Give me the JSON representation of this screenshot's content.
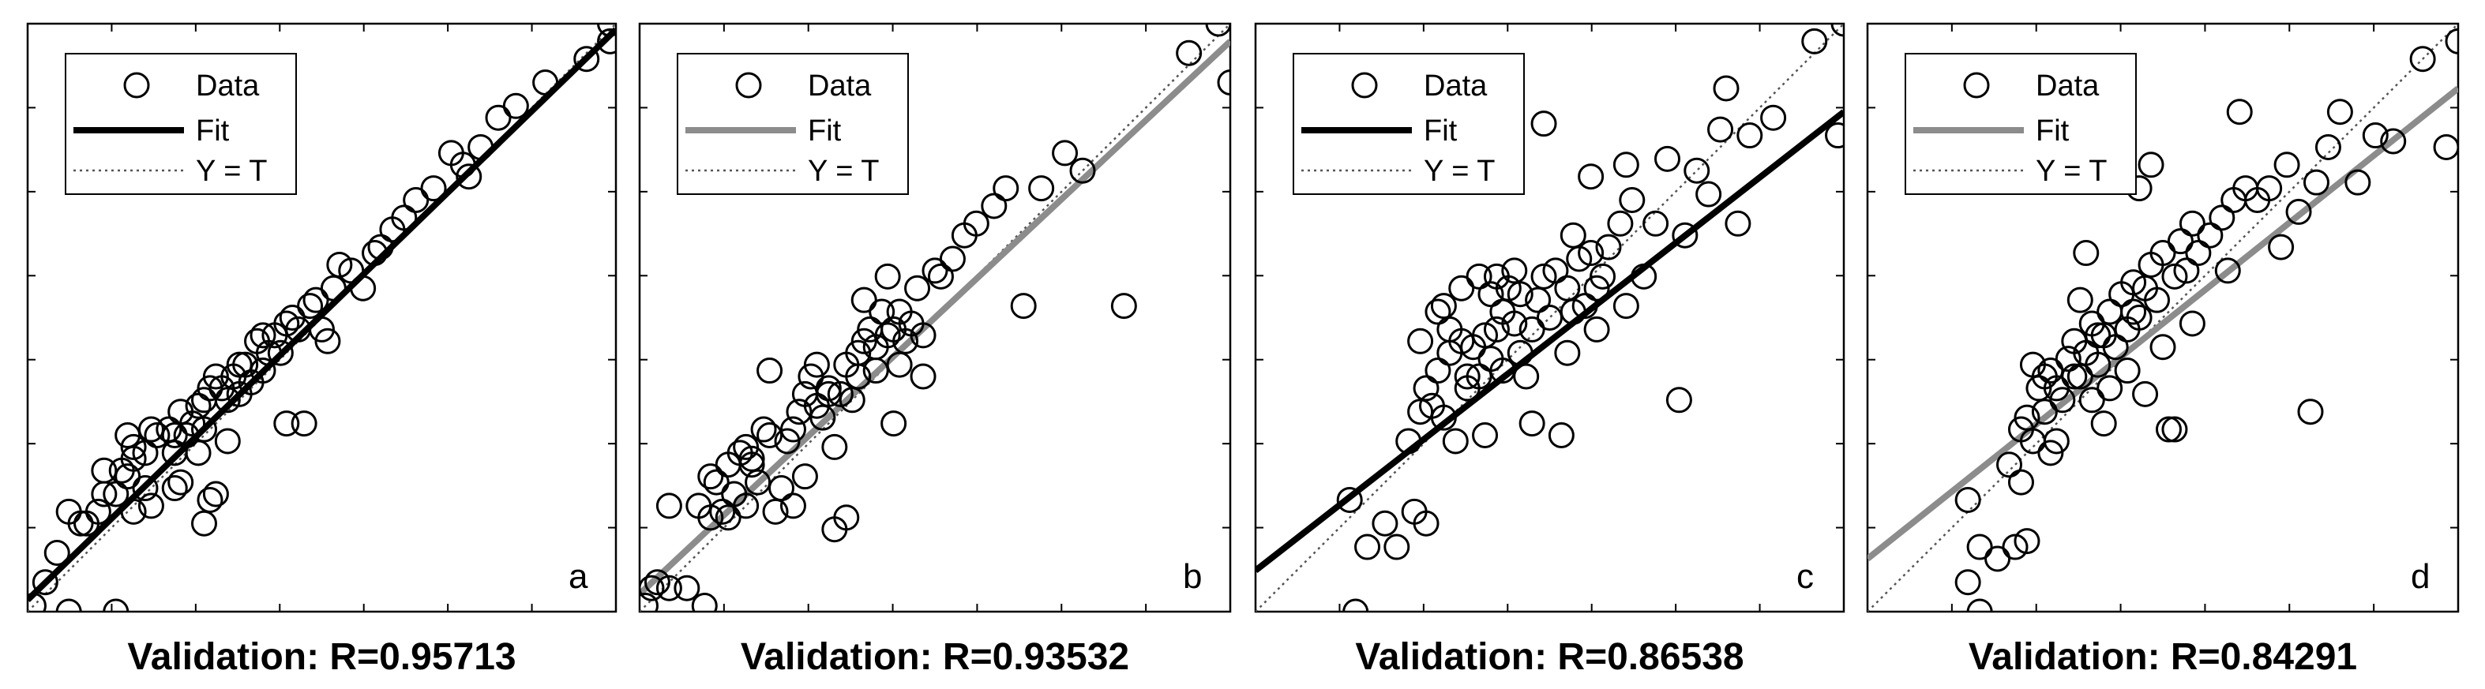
{
  "chart_data": [
    {
      "type": "scatter",
      "panel_label": "a",
      "caption": "Validation: R=0.95713",
      "fit_color": "#000000",
      "legend": {
        "data": "Data",
        "fit": "Fit",
        "identity": "Y = T"
      },
      "xlim": [
        0,
        1
      ],
      "ylim": [
        0,
        1
      ],
      "fit": {
        "slope": 0.97,
        "intercept": 0.02
      },
      "points": [
        [
          0.01,
          0.01
        ],
        [
          0.03,
          0.05
        ],
        [
          0.05,
          0.1
        ],
        [
          0.07,
          0.0
        ],
        [
          0.15,
          0.0
        ],
        [
          0.07,
          0.17
        ],
        [
          0.09,
          0.15
        ],
        [
          0.1,
          0.15
        ],
        [
          0.12,
          0.17
        ],
        [
          0.13,
          0.2
        ],
        [
          0.13,
          0.24
        ],
        [
          0.15,
          0.2
        ],
        [
          0.16,
          0.24
        ],
        [
          0.17,
          0.23
        ],
        [
          0.18,
          0.26
        ],
        [
          0.18,
          0.17
        ],
        [
          0.2,
          0.27
        ],
        [
          0.21,
          0.31
        ],
        [
          0.22,
          0.3
        ],
        [
          0.24,
          0.31
        ],
        [
          0.25,
          0.27
        ],
        [
          0.25,
          0.3
        ],
        [
          0.26,
          0.34
        ],
        [
          0.27,
          0.3
        ],
        [
          0.28,
          0.32
        ],
        [
          0.29,
          0.35
        ],
        [
          0.3,
          0.36
        ],
        [
          0.3,
          0.31
        ],
        [
          0.31,
          0.38
        ],
        [
          0.32,
          0.4
        ],
        [
          0.33,
          0.38
        ],
        [
          0.34,
          0.36
        ],
        [
          0.35,
          0.4
        ],
        [
          0.36,
          0.37
        ],
        [
          0.37,
          0.42
        ],
        [
          0.38,
          0.39
        ],
        [
          0.39,
          0.46
        ],
        [
          0.4,
          0.47
        ],
        [
          0.41,
          0.44
        ],
        [
          0.42,
          0.47
        ],
        [
          0.43,
          0.44
        ],
        [
          0.44,
          0.49
        ],
        [
          0.45,
          0.5
        ],
        [
          0.46,
          0.48
        ],
        [
          0.47,
          0.32
        ],
        [
          0.48,
          0.52
        ],
        [
          0.49,
          0.53
        ],
        [
          0.5,
          0.48
        ],
        [
          0.51,
          0.46
        ],
        [
          0.52,
          0.55
        ],
        [
          0.53,
          0.59
        ],
        [
          0.55,
          0.58
        ],
        [
          0.57,
          0.55
        ],
        [
          0.59,
          0.61
        ],
        [
          0.6,
          0.62
        ],
        [
          0.62,
          0.65
        ],
        [
          0.64,
          0.67
        ],
        [
          0.66,
          0.7
        ],
        [
          0.69,
          0.72
        ],
        [
          0.72,
          0.78
        ],
        [
          0.74,
          0.76
        ],
        [
          0.75,
          0.74
        ],
        [
          0.77,
          0.79
        ],
        [
          0.8,
          0.84
        ],
        [
          0.83,
          0.86
        ],
        [
          0.88,
          0.9
        ],
        [
          0.95,
          0.94
        ],
        [
          0.99,
          0.97
        ],
        [
          0.99,
          1.0
        ],
        [
          0.44,
          0.32
        ],
        [
          0.25,
          0.21
        ],
        [
          0.17,
          0.3
        ],
        [
          0.31,
          0.19
        ],
        [
          0.32,
          0.2
        ],
        [
          0.34,
          0.29
        ],
        [
          0.26,
          0.22
        ],
        [
          0.4,
          0.41
        ],
        [
          0.36,
          0.42
        ],
        [
          0.29,
          0.27
        ],
        [
          0.21,
          0.18
        ],
        [
          0.2,
          0.21
        ],
        [
          0.18,
          0.28
        ],
        [
          0.3,
          0.15
        ]
      ]
    },
    {
      "type": "scatter",
      "panel_label": "b",
      "caption": "Validation: R=0.93532",
      "fit_color": "#8c8c8c",
      "legend": {
        "data": "Data",
        "fit": "Fit",
        "identity": "Y = T"
      },
      "xlim": [
        0,
        1
      ],
      "ylim": [
        0,
        1
      ],
      "fit": {
        "slope": 0.94,
        "intercept": 0.03
      },
      "points": [
        [
          0.01,
          0.01
        ],
        [
          0.02,
          0.04
        ],
        [
          0.03,
          0.05
        ],
        [
          0.05,
          0.04
        ],
        [
          0.08,
          0.04
        ],
        [
          0.11,
          0.01
        ],
        [
          0.1,
          0.18
        ],
        [
          0.12,
          0.16
        ],
        [
          0.13,
          0.22
        ],
        [
          0.14,
          0.17
        ],
        [
          0.15,
          0.16
        ],
        [
          0.16,
          0.2
        ],
        [
          0.18,
          0.18
        ],
        [
          0.18,
          0.28
        ],
        [
          0.19,
          0.25
        ],
        [
          0.2,
          0.22
        ],
        [
          0.21,
          0.31
        ],
        [
          0.22,
          0.3
        ],
        [
          0.23,
          0.17
        ],
        [
          0.24,
          0.21
        ],
        [
          0.25,
          0.29
        ],
        [
          0.26,
          0.31
        ],
        [
          0.27,
          0.34
        ],
        [
          0.28,
          0.37
        ],
        [
          0.29,
          0.4
        ],
        [
          0.3,
          0.35
        ],
        [
          0.31,
          0.33
        ],
        [
          0.32,
          0.38
        ],
        [
          0.33,
          0.14
        ],
        [
          0.34,
          0.37
        ],
        [
          0.35,
          0.42
        ],
        [
          0.36,
          0.36
        ],
        [
          0.37,
          0.44
        ],
        [
          0.38,
          0.46
        ],
        [
          0.39,
          0.48
        ],
        [
          0.4,
          0.45
        ],
        [
          0.41,
          0.51
        ],
        [
          0.42,
          0.47
        ],
        [
          0.43,
          0.32
        ],
        [
          0.44,
          0.51
        ],
        [
          0.45,
          0.46
        ],
        [
          0.46,
          0.49
        ],
        [
          0.47,
          0.55
        ],
        [
          0.48,
          0.4
        ],
        [
          0.5,
          0.58
        ],
        [
          0.51,
          0.57
        ],
        [
          0.53,
          0.6
        ],
        [
          0.55,
          0.64
        ],
        [
          0.57,
          0.66
        ],
        [
          0.6,
          0.69
        ],
        [
          0.62,
          0.72
        ],
        [
          0.65,
          0.52
        ],
        [
          0.68,
          0.72
        ],
        [
          0.72,
          0.78
        ],
        [
          0.75,
          0.75
        ],
        [
          0.82,
          0.52
        ],
        [
          0.93,
          0.95
        ],
        [
          0.98,
          1.0
        ],
        [
          1.0,
          0.9
        ],
        [
          0.38,
          0.53
        ],
        [
          0.28,
          0.23
        ],
        [
          0.35,
          0.16
        ],
        [
          0.4,
          0.41
        ],
        [
          0.19,
          0.26
        ],
        [
          0.22,
          0.41
        ],
        [
          0.3,
          0.42
        ],
        [
          0.15,
          0.25
        ],
        [
          0.12,
          0.23
        ],
        [
          0.17,
          0.27
        ],
        [
          0.26,
          0.18
        ],
        [
          0.32,
          0.37
        ],
        [
          0.37,
          0.4
        ],
        [
          0.43,
          0.48
        ],
        [
          0.48,
          0.47
        ],
        [
          0.44,
          0.42
        ],
        [
          0.33,
          0.28
        ],
        [
          0.05,
          0.18
        ],
        [
          0.42,
          0.57
        ]
      ]
    },
    {
      "type": "scatter",
      "panel_label": "c",
      "caption": "Validation: R=0.86538",
      "fit_color": "#000000",
      "legend": {
        "data": "Data",
        "fit": "Fit",
        "identity": "Y = T"
      },
      "xlim": [
        0,
        1
      ],
      "ylim": [
        0,
        1
      ],
      "fit": {
        "slope": 0.78,
        "intercept": 0.07
      },
      "points": [
        [
          0.17,
          0.0
        ],
        [
          0.16,
          0.19
        ],
        [
          0.19,
          0.11
        ],
        [
          0.22,
          0.15
        ],
        [
          0.24,
          0.11
        ],
        [
          0.27,
          0.17
        ],
        [
          0.29,
          0.15
        ],
        [
          0.26,
          0.29
        ],
        [
          0.28,
          0.34
        ],
        [
          0.29,
          0.38
        ],
        [
          0.3,
          0.35
        ],
        [
          0.31,
          0.41
        ],
        [
          0.32,
          0.33
        ],
        [
          0.33,
          0.44
        ],
        [
          0.34,
          0.29
        ],
        [
          0.35,
          0.46
        ],
        [
          0.36,
          0.38
        ],
        [
          0.37,
          0.45
        ],
        [
          0.38,
          0.4
        ],
        [
          0.39,
          0.47
        ],
        [
          0.4,
          0.43
        ],
        [
          0.41,
          0.48
        ],
        [
          0.42,
          0.51
        ],
        [
          0.43,
          0.55
        ],
        [
          0.44,
          0.49
        ],
        [
          0.45,
          0.54
        ],
        [
          0.46,
          0.4
        ],
        [
          0.47,
          0.48
        ],
        [
          0.48,
          0.53
        ],
        [
          0.49,
          0.57
        ],
        [
          0.5,
          0.5
        ],
        [
          0.51,
          0.58
        ],
        [
          0.52,
          0.3
        ],
        [
          0.53,
          0.55
        ],
        [
          0.54,
          0.51
        ],
        [
          0.55,
          0.6
        ],
        [
          0.56,
          0.52
        ],
        [
          0.57,
          0.61
        ],
        [
          0.58,
          0.55
        ],
        [
          0.59,
          0.57
        ],
        [
          0.6,
          0.62
        ],
        [
          0.62,
          0.66
        ],
        [
          0.63,
          0.52
        ],
        [
          0.64,
          0.7
        ],
        [
          0.66,
          0.57
        ],
        [
          0.68,
          0.66
        ],
        [
          0.7,
          0.77
        ],
        [
          0.72,
          0.36
        ],
        [
          0.73,
          0.64
        ],
        [
          0.75,
          0.75
        ],
        [
          0.77,
          0.71
        ],
        [
          0.79,
          0.82
        ],
        [
          0.8,
          0.89
        ],
        [
          0.82,
          0.66
        ],
        [
          0.84,
          0.81
        ],
        [
          0.88,
          0.84
        ],
        [
          0.95,
          0.97
        ],
        [
          0.99,
          0.81
        ],
        [
          1.0,
          1.0
        ],
        [
          0.49,
          0.83
        ],
        [
          0.63,
          0.76
        ],
        [
          0.57,
          0.74
        ],
        [
          0.42,
          0.41
        ],
        [
          0.38,
          0.57
        ],
        [
          0.31,
          0.51
        ],
        [
          0.35,
          0.55
        ],
        [
          0.4,
          0.54
        ],
        [
          0.44,
          0.58
        ],
        [
          0.47,
          0.32
        ],
        [
          0.53,
          0.44
        ],
        [
          0.58,
          0.48
        ],
        [
          0.33,
          0.48
        ],
        [
          0.28,
          0.46
        ],
        [
          0.36,
          0.4
        ],
        [
          0.45,
          0.44
        ],
        [
          0.39,
          0.3
        ],
        [
          0.32,
          0.52
        ],
        [
          0.54,
          0.64
        ],
        [
          0.41,
          0.57
        ]
      ]
    },
    {
      "type": "scatter",
      "panel_label": "d",
      "caption": "Validation: R=0.84291",
      "fit_color": "#8c8c8c",
      "legend": {
        "data": "Data",
        "fit": "Fit",
        "identity": "Y = T"
      },
      "xlim": [
        0,
        1
      ],
      "ylim": [
        0,
        1
      ],
      "fit": {
        "slope": 0.8,
        "intercept": 0.09
      },
      "points": [
        [
          0.19,
          0.0
        ],
        [
          0.17,
          0.05
        ],
        [
          0.19,
          0.11
        ],
        [
          0.17,
          0.19
        ],
        [
          0.22,
          0.09
        ],
        [
          0.25,
          0.11
        ],
        [
          0.27,
          0.12
        ],
        [
          0.24,
          0.25
        ],
        [
          0.26,
          0.31
        ],
        [
          0.27,
          0.33
        ],
        [
          0.28,
          0.29
        ],
        [
          0.29,
          0.38
        ],
        [
          0.3,
          0.34
        ],
        [
          0.31,
          0.41
        ],
        [
          0.32,
          0.38
        ],
        [
          0.33,
          0.36
        ],
        [
          0.34,
          0.43
        ],
        [
          0.35,
          0.46
        ],
        [
          0.36,
          0.4
        ],
        [
          0.37,
          0.44
        ],
        [
          0.38,
          0.49
        ],
        [
          0.39,
          0.42
        ],
        [
          0.4,
          0.47
        ],
        [
          0.41,
          0.51
        ],
        [
          0.42,
          0.45
        ],
        [
          0.43,
          0.54
        ],
        [
          0.44,
          0.48
        ],
        [
          0.45,
          0.56
        ],
        [
          0.46,
          0.5
        ],
        [
          0.47,
          0.55
        ],
        [
          0.48,
          0.59
        ],
        [
          0.49,
          0.53
        ],
        [
          0.5,
          0.61
        ],
        [
          0.51,
          0.31
        ],
        [
          0.52,
          0.57
        ],
        [
          0.53,
          0.63
        ],
        [
          0.54,
          0.58
        ],
        [
          0.55,
          0.66
        ],
        [
          0.56,
          0.61
        ],
        [
          0.58,
          0.64
        ],
        [
          0.6,
          0.67
        ],
        [
          0.61,
          0.58
        ],
        [
          0.62,
          0.7
        ],
        [
          0.63,
          0.85
        ],
        [
          0.64,
          0.72
        ],
        [
          0.66,
          0.7
        ],
        [
          0.68,
          0.72
        ],
        [
          0.7,
          0.62
        ],
        [
          0.71,
          0.76
        ],
        [
          0.73,
          0.68
        ],
        [
          0.75,
          0.34
        ],
        [
          0.76,
          0.73
        ],
        [
          0.78,
          0.79
        ],
        [
          0.8,
          0.85
        ],
        [
          0.83,
          0.73
        ],
        [
          0.86,
          0.81
        ],
        [
          0.89,
          0.8
        ],
        [
          0.94,
          0.94
        ],
        [
          0.98,
          0.79
        ],
        [
          1.0,
          0.97
        ],
        [
          0.48,
          0.76
        ],
        [
          0.46,
          0.72
        ],
        [
          0.3,
          0.4
        ],
        [
          0.35,
          0.4
        ],
        [
          0.38,
          0.36
        ],
        [
          0.32,
          0.29
        ],
        [
          0.41,
          0.38
        ],
        [
          0.44,
          0.41
        ],
        [
          0.39,
          0.47
        ],
        [
          0.28,
          0.42
        ],
        [
          0.36,
          0.53
        ],
        [
          0.47,
          0.37
        ],
        [
          0.52,
          0.31
        ],
        [
          0.4,
          0.32
        ],
        [
          0.26,
          0.22
        ],
        [
          0.31,
          0.27
        ],
        [
          0.45,
          0.51
        ],
        [
          0.5,
          0.45
        ],
        [
          0.55,
          0.49
        ],
        [
          0.37,
          0.61
        ]
      ]
    }
  ]
}
